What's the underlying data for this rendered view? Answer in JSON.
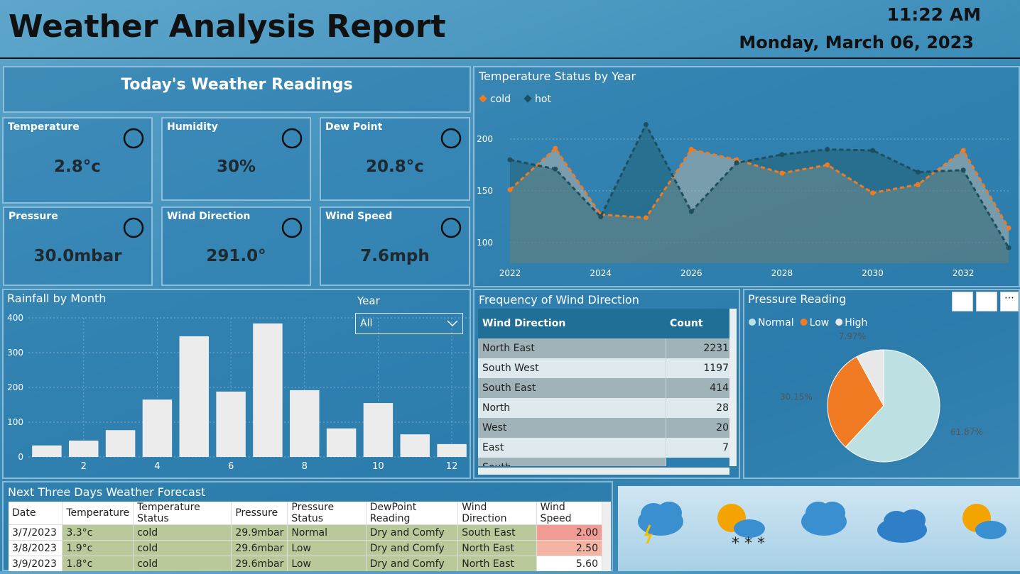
{
  "header": {
    "title": "Weather Analysis Report",
    "time": "11:22 AM",
    "date": "Monday, March 06, 2023"
  },
  "readings": {
    "title": "Today's Weather Readings",
    "cards": [
      {
        "label": "Temperature",
        "value": "2.8°c"
      },
      {
        "label": "Humidity",
        "value": "30%"
      },
      {
        "label": "Dew Point",
        "value": "20.8°c"
      },
      {
        "label": "Pressure",
        "value": "30.0mbar"
      },
      {
        "label": "Wind Direction",
        "value": "291.0°"
      },
      {
        "label": "Wind Speed",
        "value": "7.6mph"
      }
    ]
  },
  "slicer": {
    "label": "Year",
    "value": "All"
  },
  "wind_table": {
    "title": "Frequency of Wind Direction",
    "columns": [
      "Wind Direction",
      "Count"
    ],
    "rows": [
      [
        "North East",
        "2231"
      ],
      [
        "South West",
        "1197"
      ],
      [
        "South East",
        "414"
      ],
      [
        "North",
        "28"
      ],
      [
        "West",
        "20"
      ],
      [
        "East",
        "7"
      ],
      [
        "South"
      ]
    ]
  },
  "forecast": {
    "title": "Next Three Days Weather Forecast",
    "columns": [
      "Date",
      "Temperature",
      "Temperature Status",
      "Pressure",
      "Pressure Status",
      "DewPoint Reading",
      "Wind Direction",
      "Wind Speed"
    ],
    "rows": [
      [
        "3/7/2023",
        "3.3°c",
        "cold",
        "29.9mbar",
        "Normal",
        "Dry and Comfy",
        "South East",
        "2.00"
      ],
      [
        "3/8/2023",
        "1.9°c",
        "cold",
        "29.6mbar",
        "Low",
        "Dry and Comfy",
        "North East",
        "2.50"
      ],
      [
        "3/9/2023",
        "1.8°c",
        "cold",
        "29.6mbar",
        "Low",
        "Dry and Comfy",
        "North East",
        "5.60"
      ]
    ]
  },
  "chart_data": [
    {
      "type": "line",
      "title": "Temperature Status by Year",
      "x": [
        2022,
        2023,
        2024,
        2025,
        2026,
        2027,
        2028,
        2029,
        2030,
        2031,
        2032,
        2033
      ],
      "xlim": [
        2022,
        2033
      ],
      "xticks": [
        2022,
        2024,
        2026,
        2028,
        2030,
        2032
      ],
      "ylim": [
        80,
        225
      ],
      "yticks": [
        100,
        150,
        200
      ],
      "grid": true,
      "legend": "top-left",
      "series": [
        {
          "name": "cold",
          "color": "#f07b22",
          "values": [
            151,
            191,
            127,
            124,
            190,
            180,
            167,
            175,
            148,
            156,
            189,
            114
          ]
        },
        {
          "name": "hot",
          "color": "#1d4f5e",
          "values": [
            180,
            171,
            125,
            214,
            130,
            177,
            185,
            190,
            189,
            168,
            170,
            95
          ]
        }
      ]
    },
    {
      "type": "bar",
      "title": "Rainfall by Month",
      "x": [
        1,
        2,
        3,
        4,
        5,
        6,
        7,
        8,
        9,
        10,
        11,
        12
      ],
      "values": [
        33,
        47,
        77,
        165,
        347,
        188,
        384,
        192,
        82,
        155,
        65,
        37
      ],
      "color": "#ececec",
      "xlim": [
        0.5,
        12.5
      ],
      "xticks": [
        2,
        4,
        6,
        8,
        10,
        12
      ],
      "ylim": [
        0,
        400
      ],
      "yticks": [
        0,
        100,
        200,
        300,
        400
      ],
      "grid": true
    },
    {
      "type": "pie",
      "title": "Pressure Reading",
      "categories": [
        "Normal",
        "Low",
        "High"
      ],
      "values": [
        61.87,
        30.15,
        7.97
      ],
      "value_labels": [
        "61.87%",
        "30.15%",
        "7.97%"
      ],
      "colors": [
        "#bde0e2",
        "#f07b22",
        "#e8e8e8"
      ],
      "legend": "top-left"
    }
  ]
}
